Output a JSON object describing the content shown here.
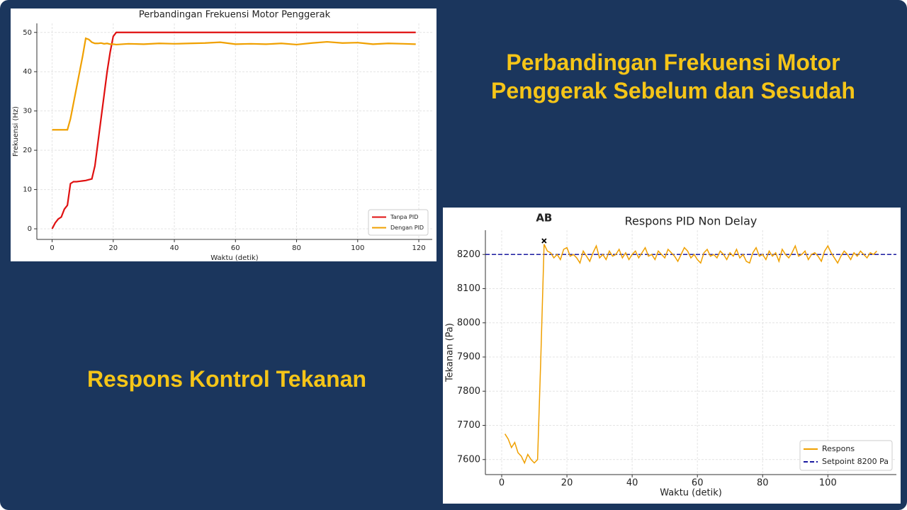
{
  "slide": {
    "heading_lines": [
      "Perbandingan Frekuensi Motor",
      "Penggerak Sebelum dan Sesudah"
    ],
    "subheading": "Respons Kontrol Tekanan"
  },
  "chart_data": [
    {
      "type": "line",
      "title": "Perbandingan Frekuensi Motor Penggerak",
      "x_label": "Waktu (detik)",
      "y_label": "Frekuensi (Hz)",
      "xlim": [
        -5,
        124.4
      ],
      "ylim": [
        -2.7,
        52.3
      ],
      "xticks": [
        0,
        20,
        40,
        60,
        80,
        100,
        120
      ],
      "yticks": [
        0,
        10,
        20,
        30,
        40,
        50
      ],
      "grid": true,
      "legend": "lower-right",
      "x": [
        0,
        1,
        2,
        3,
        4,
        5,
        6,
        7,
        8,
        9,
        10,
        11,
        12,
        13,
        14,
        15,
        16,
        17,
        18,
        19,
        20,
        21,
        25,
        30,
        35,
        40,
        45,
        50,
        55,
        60,
        65,
        70,
        75,
        80,
        85,
        90,
        95,
        100,
        105,
        110,
        115,
        119
      ],
      "series": [
        {
          "name": "Tanpa PID",
          "color": "#e01010",
          "values": [
            0,
            1.5,
            2.5,
            3,
            5,
            6,
            11.5,
            12,
            12,
            12.1,
            12.2,
            12.3,
            12.5,
            12.7,
            16,
            22,
            28,
            34,
            40,
            45,
            49,
            50,
            50,
            50,
            50,
            50,
            50,
            50,
            50,
            50,
            50,
            50,
            50,
            50,
            50,
            50,
            50,
            50,
            50,
            50,
            50,
            50
          ]
        },
        {
          "name": "Dengan PID",
          "color": "#f0a000",
          "values": [
            25.2,
            25.2,
            25.2,
            25.2,
            25.2,
            25.2,
            28,
            32,
            36,
            40,
            44,
            48.5,
            48.2,
            47.5,
            47.2,
            47.2,
            47.3,
            47.1,
            47.2,
            47,
            47,
            46.9,
            47.1,
            47,
            47.2,
            47.1,
            47.2,
            47.3,
            47.5,
            47,
            47.1,
            47,
            47.2,
            46.9,
            47.3,
            47.6,
            47.3,
            47.4,
            47,
            47.2,
            47.1,
            47
          ]
        }
      ]
    },
    {
      "type": "line",
      "title": "Respons PID Non Delay",
      "x_label": "Waktu (detik)",
      "y_label": "Tekanan (Pa)",
      "xlim": [
        -5,
        121
      ],
      "ylim": [
        7556,
        8271
      ],
      "xticks": [
        0,
        20,
        40,
        60,
        80,
        100
      ],
      "yticks": [
        7600,
        7700,
        7800,
        7900,
        8000,
        8100,
        8200
      ],
      "grid": true,
      "legend": "lower-right",
      "x": [
        1,
        2,
        3,
        4,
        5,
        6,
        7,
        8,
        9,
        10,
        11,
        12,
        13,
        14,
        15,
        16,
        17,
        18,
        19,
        20,
        21,
        22,
        23,
        24,
        25,
        26,
        27,
        28,
        29,
        30,
        31,
        32,
        33,
        34,
        35,
        36,
        37,
        38,
        39,
        40,
        41,
        42,
        43,
        44,
        45,
        46,
        47,
        48,
        49,
        50,
        51,
        52,
        53,
        54,
        55,
        56,
        57,
        58,
        59,
        60,
        61,
        62,
        63,
        64,
        65,
        66,
        67,
        68,
        69,
        70,
        71,
        72,
        73,
        74,
        75,
        76,
        77,
        78,
        79,
        80,
        81,
        82,
        83,
        84,
        85,
        86,
        87,
        88,
        89,
        90,
        91,
        92,
        93,
        94,
        95,
        96,
        97,
        98,
        99,
        100,
        101,
        102,
        103,
        104,
        105,
        106,
        107,
        108,
        109,
        110,
        111,
        112,
        113,
        114,
        115
      ],
      "series": [
        {
          "name": "Respons",
          "color": "#f0a000",
          "values": [
            7675,
            7660,
            7635,
            7650,
            7620,
            7610,
            7590,
            7615,
            7600,
            7590,
            7600,
            7900,
            8230,
            8210,
            8205,
            8190,
            8200,
            8185,
            8215,
            8220,
            8195,
            8200,
            8190,
            8175,
            8210,
            8195,
            8180,
            8205,
            8225,
            8190,
            8200,
            8185,
            8210,
            8195,
            8200,
            8215,
            8190,
            8205,
            8185,
            8200,
            8210,
            8190,
            8205,
            8220,
            8195,
            8200,
            8185,
            8210,
            8200,
            8190,
            8215,
            8205,
            8195,
            8180,
            8200,
            8220,
            8210,
            8190,
            8200,
            8185,
            8175,
            8205,
            8215,
            8195,
            8200,
            8190,
            8210,
            8200,
            8185,
            8205,
            8195,
            8215,
            8190,
            8200,
            8180,
            8175,
            8205,
            8220,
            8195,
            8200,
            8185,
            8210,
            8195,
            8205,
            8180,
            8215,
            8200,
            8190,
            8205,
            8225,
            8195,
            8200,
            8210,
            8185,
            8200,
            8205,
            8195,
            8180,
            8210,
            8225,
            8205,
            8190,
            8175,
            8195,
            8210,
            8200,
            8185,
            8205,
            8195,
            8210,
            8200,
            8190,
            8205,
            8200,
            8210
          ]
        }
      ],
      "hline": {
        "value": 8200,
        "label": "Setpoint 8200 Pa",
        "color": "#1a1aa0"
      },
      "annotation": {
        "text": "AB",
        "x": 13,
        "y": 8240
      }
    }
  ]
}
